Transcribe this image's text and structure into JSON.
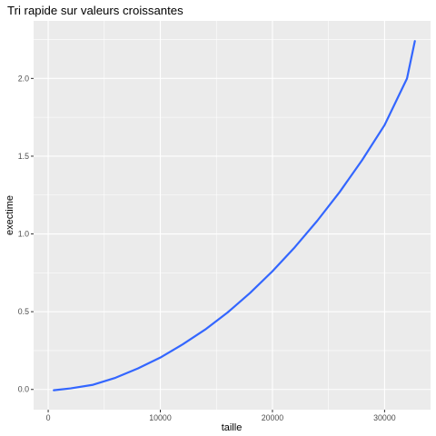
{
  "chart_data": {
    "type": "line",
    "title": "Tri rapide sur valeurs croissantes",
    "xlabel": "taille",
    "ylabel": "exectime",
    "xlim": [
      -1300,
      34100
    ],
    "ylim": [
      -0.13,
      2.37
    ],
    "x_ticks": [
      0,
      10000,
      20000,
      30000
    ],
    "x_tick_labels": [
      "0",
      "10000",
      "20000",
      "30000"
    ],
    "y_ticks": [
      0.0,
      0.5,
      1.0,
      1.5,
      2.0
    ],
    "y_tick_labels": [
      "0.0",
      "0.5",
      "1.0",
      "1.5",
      "2.0"
    ],
    "grid": true,
    "background": "#ebebeb",
    "grid_major_color": "#ffffff",
    "series": [
      {
        "color": "#3366ff",
        "x": [
          500,
          2000,
          4000,
          6000,
          8000,
          10000,
          12000,
          14000,
          16000,
          18000,
          20000,
          22000,
          24000,
          26000,
          28000,
          30000,
          32000,
          32700
        ],
        "y": [
          -0.005,
          0.007,
          0.03,
          0.075,
          0.135,
          0.205,
          0.29,
          0.385,
          0.495,
          0.62,
          0.76,
          0.915,
          1.085,
          1.27,
          1.475,
          1.7,
          2.0,
          2.24
        ]
      }
    ]
  }
}
